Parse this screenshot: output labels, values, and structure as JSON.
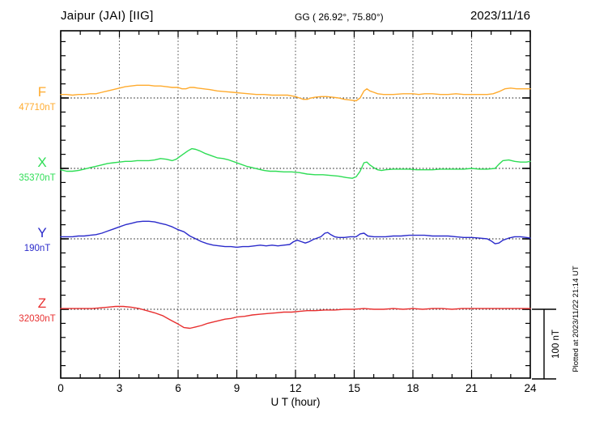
{
  "header": {
    "station_title": "Jaipur (JAI)  [IIG]",
    "coords_label": "GG ( 26.92°,  75.80°)",
    "date": "2023/11/16"
  },
  "axis": {
    "x_label": "U T (hour)",
    "x_ticks": [
      0,
      3,
      6,
      9,
      12,
      15,
      18,
      21,
      24
    ],
    "x_range": [
      0,
      24
    ],
    "minor_tick_step_hours": 1,
    "grid_hours": [
      3,
      6,
      9,
      12,
      15,
      18,
      21
    ],
    "y_minor_tick_nT": 20
  },
  "scale_bar": {
    "label": "100 nT",
    "nT": 100
  },
  "footer_note": "Plotted at 2023/11/22 21:14 UT",
  "chart_data": {
    "type": "line",
    "title": "Jaipur (JAI) [IIG] magnetogram 2023/11/16",
    "xlabel": "U T (hour)",
    "x_range": [
      0,
      24
    ],
    "grid": "dotted vertical every 3 h, dotted horizontal baseline per component",
    "legend_position": "left margin (component letter + baseline value)",
    "y_units": "nT offset from component baseline, 100 nT between baselines",
    "series": [
      {
        "name": "F",
        "baseline_label": "47710nT",
        "color": "#FFAB2E",
        "points": [
          [
            0,
            5
          ],
          [
            0.3,
            5
          ],
          [
            0.6,
            4
          ],
          [
            0.9,
            5
          ],
          [
            1.2,
            5
          ],
          [
            1.5,
            6
          ],
          [
            1.8,
            6
          ],
          [
            2.1,
            8
          ],
          [
            2.4,
            10
          ],
          [
            2.7,
            12
          ],
          [
            3.0,
            14
          ],
          [
            3.3,
            16
          ],
          [
            3.6,
            17
          ],
          [
            3.9,
            18
          ],
          [
            4.2,
            18
          ],
          [
            4.5,
            18
          ],
          [
            4.8,
            17
          ],
          [
            5.1,
            17
          ],
          [
            5.4,
            16
          ],
          [
            5.7,
            15
          ],
          [
            6.0,
            15
          ],
          [
            6.2,
            13
          ],
          [
            6.4,
            13
          ],
          [
            6.6,
            15
          ],
          [
            6.8,
            15
          ],
          [
            7.0,
            14
          ],
          [
            7.3,
            13
          ],
          [
            7.6,
            12
          ],
          [
            8.0,
            10
          ],
          [
            8.4,
            9
          ],
          [
            8.8,
            8
          ],
          [
            9.2,
            7
          ],
          [
            9.6,
            6
          ],
          [
            10.0,
            5
          ],
          [
            10.4,
            5
          ],
          [
            10.8,
            4
          ],
          [
            11.2,
            4
          ],
          [
            11.6,
            4
          ],
          [
            12.0,
            2
          ],
          [
            12.2,
            0
          ],
          [
            12.4,
            -2
          ],
          [
            12.6,
            -2
          ],
          [
            12.8,
            0
          ],
          [
            13.0,
            1
          ],
          [
            13.3,
            2
          ],
          [
            13.6,
            2
          ],
          [
            13.9,
            1
          ],
          [
            14.2,
            0
          ],
          [
            14.5,
            -2
          ],
          [
            14.8,
            -3
          ],
          [
            15.1,
            -4
          ],
          [
            15.3,
            0
          ],
          [
            15.5,
            10
          ],
          [
            15.65,
            13
          ],
          [
            15.8,
            10
          ],
          [
            16.0,
            8
          ],
          [
            16.2,
            6
          ],
          [
            16.5,
            5
          ],
          [
            17.0,
            5
          ],
          [
            17.5,
            6
          ],
          [
            18.0,
            6
          ],
          [
            18.3,
            5
          ],
          [
            18.6,
            6
          ],
          [
            19.0,
            6
          ],
          [
            19.4,
            5
          ],
          [
            19.8,
            5
          ],
          [
            20.2,
            6
          ],
          [
            20.6,
            5
          ],
          [
            21.0,
            5
          ],
          [
            21.4,
            5
          ],
          [
            21.8,
            5
          ],
          [
            22.1,
            6
          ],
          [
            22.4,
            9
          ],
          [
            22.7,
            13
          ],
          [
            23.0,
            14
          ],
          [
            23.3,
            13
          ],
          [
            23.6,
            13
          ],
          [
            24,
            13
          ]
        ]
      },
      {
        "name": "X",
        "baseline_label": "35370nT",
        "color": "#2EDD55",
        "points": [
          [
            0,
            -2
          ],
          [
            0.3,
            -4
          ],
          [
            0.6,
            -4
          ],
          [
            0.9,
            -3
          ],
          [
            1.2,
            -1
          ],
          [
            1.5,
            1
          ],
          [
            1.8,
            3
          ],
          [
            2.1,
            5
          ],
          [
            2.4,
            7
          ],
          [
            2.7,
            8
          ],
          [
            3.0,
            9
          ],
          [
            3.3,
            10
          ],
          [
            3.6,
            10
          ],
          [
            3.9,
            11
          ],
          [
            4.2,
            11
          ],
          [
            4.5,
            11
          ],
          [
            4.8,
            12
          ],
          [
            5.1,
            14
          ],
          [
            5.4,
            13
          ],
          [
            5.7,
            11
          ],
          [
            5.9,
            13
          ],
          [
            6.1,
            17
          ],
          [
            6.3,
            21
          ],
          [
            6.5,
            25
          ],
          [
            6.7,
            28
          ],
          [
            6.9,
            27
          ],
          [
            7.1,
            25
          ],
          [
            7.4,
            21
          ],
          [
            7.7,
            18
          ],
          [
            8.0,
            15
          ],
          [
            8.3,
            14
          ],
          [
            8.6,
            12
          ],
          [
            8.9,
            9
          ],
          [
            9.2,
            6
          ],
          [
            9.5,
            3
          ],
          [
            9.8,
            1
          ],
          [
            10.1,
            -1
          ],
          [
            10.4,
            -3
          ],
          [
            10.7,
            -4
          ],
          [
            11.0,
            -4
          ],
          [
            11.4,
            -5
          ],
          [
            11.8,
            -5
          ],
          [
            12.2,
            -6
          ],
          [
            12.6,
            -8
          ],
          [
            13.0,
            -9
          ],
          [
            13.4,
            -9
          ],
          [
            13.8,
            -10
          ],
          [
            14.2,
            -11
          ],
          [
            14.6,
            -13
          ],
          [
            14.9,
            -14
          ],
          [
            15.1,
            -12
          ],
          [
            15.3,
            -4
          ],
          [
            15.5,
            8
          ],
          [
            15.65,
            9
          ],
          [
            15.8,
            5
          ],
          [
            16.0,
            1
          ],
          [
            16.2,
            -2
          ],
          [
            16.4,
            -3
          ],
          [
            16.6,
            -2
          ],
          [
            17.0,
            -1
          ],
          [
            17.4,
            -1
          ],
          [
            17.8,
            -1
          ],
          [
            18.2,
            -2
          ],
          [
            18.6,
            -2
          ],
          [
            19.0,
            -2
          ],
          [
            19.4,
            -1
          ],
          [
            19.8,
            -1
          ],
          [
            20.2,
            -1
          ],
          [
            20.6,
            -1
          ],
          [
            21.0,
            0
          ],
          [
            21.4,
            -1
          ],
          [
            21.8,
            -1
          ],
          [
            22.2,
            0
          ],
          [
            22.4,
            6
          ],
          [
            22.6,
            11
          ],
          [
            22.9,
            12
          ],
          [
            23.2,
            10
          ],
          [
            23.5,
            9
          ],
          [
            23.8,
            9
          ],
          [
            24,
            10
          ]
        ]
      },
      {
        "name": "Y",
        "baseline_label": "190nT",
        "color": "#2B2BCB",
        "points": [
          [
            0,
            3
          ],
          [
            0.3,
            3
          ],
          [
            0.6,
            3
          ],
          [
            0.9,
            4
          ],
          [
            1.2,
            4
          ],
          [
            1.5,
            5
          ],
          [
            1.8,
            6
          ],
          [
            2.1,
            8
          ],
          [
            2.4,
            11
          ],
          [
            2.7,
            14
          ],
          [
            3.0,
            17
          ],
          [
            3.3,
            20
          ],
          [
            3.6,
            22
          ],
          [
            3.9,
            24
          ],
          [
            4.2,
            25
          ],
          [
            4.5,
            25
          ],
          [
            4.8,
            24
          ],
          [
            5.1,
            22
          ],
          [
            5.4,
            20
          ],
          [
            5.7,
            17
          ],
          [
            6.0,
            13
          ],
          [
            6.3,
            10
          ],
          [
            6.6,
            4
          ],
          [
            6.9,
            0
          ],
          [
            7.2,
            -4
          ],
          [
            7.5,
            -7
          ],
          [
            7.8,
            -9
          ],
          [
            8.1,
            -10
          ],
          [
            8.4,
            -11
          ],
          [
            8.7,
            -11
          ],
          [
            9.0,
            -12
          ],
          [
            9.3,
            -11
          ],
          [
            9.6,
            -11
          ],
          [
            9.9,
            -10
          ],
          [
            10.2,
            -9
          ],
          [
            10.5,
            -10
          ],
          [
            10.8,
            -9
          ],
          [
            11.1,
            -10
          ],
          [
            11.4,
            -9
          ],
          [
            11.7,
            -8
          ],
          [
            11.9,
            -4
          ],
          [
            12.1,
            -2
          ],
          [
            12.3,
            -4
          ],
          [
            12.5,
            -6
          ],
          [
            12.7,
            -4
          ],
          [
            12.9,
            -1
          ],
          [
            13.1,
            1
          ],
          [
            13.3,
            3
          ],
          [
            13.5,
            8
          ],
          [
            13.65,
            9
          ],
          [
            13.8,
            6
          ],
          [
            14.0,
            3
          ],
          [
            14.2,
            2
          ],
          [
            14.5,
            2
          ],
          [
            14.8,
            3
          ],
          [
            15.1,
            3
          ],
          [
            15.3,
            7
          ],
          [
            15.5,
            8
          ],
          [
            15.7,
            4
          ],
          [
            16.0,
            3
          ],
          [
            16.3,
            3
          ],
          [
            16.6,
            3
          ],
          [
            17.0,
            4
          ],
          [
            17.4,
            4
          ],
          [
            17.8,
            5
          ],
          [
            18.2,
            5
          ],
          [
            18.6,
            5
          ],
          [
            19.0,
            4
          ],
          [
            19.4,
            4
          ],
          [
            19.8,
            4
          ],
          [
            20.2,
            3
          ],
          [
            20.6,
            2
          ],
          [
            21.0,
            2
          ],
          [
            21.4,
            1
          ],
          [
            21.8,
            0
          ],
          [
            22.0,
            -3
          ],
          [
            22.2,
            -7
          ],
          [
            22.4,
            -6
          ],
          [
            22.6,
            -2
          ],
          [
            22.9,
            1
          ],
          [
            23.2,
            3
          ],
          [
            23.5,
            3
          ],
          [
            23.8,
            2
          ],
          [
            24,
            1
          ]
        ]
      },
      {
        "name": "Z",
        "baseline_label": "32030nT",
        "color": "#E83030",
        "points": [
          [
            0,
            1
          ],
          [
            0.4,
            1
          ],
          [
            0.8,
            1
          ],
          [
            1.2,
            1
          ],
          [
            1.6,
            1
          ],
          [
            2.0,
            2
          ],
          [
            2.4,
            3
          ],
          [
            2.8,
            4
          ],
          [
            3.2,
            4
          ],
          [
            3.6,
            3
          ],
          [
            4.0,
            1
          ],
          [
            4.4,
            -2
          ],
          [
            4.8,
            -5
          ],
          [
            5.2,
            -9
          ],
          [
            5.6,
            -15
          ],
          [
            6.0,
            -21
          ],
          [
            6.3,
            -26
          ],
          [
            6.6,
            -27
          ],
          [
            6.9,
            -25
          ],
          [
            7.2,
            -23
          ],
          [
            7.5,
            -20
          ],
          [
            7.8,
            -18
          ],
          [
            8.1,
            -16
          ],
          [
            8.4,
            -14
          ],
          [
            8.7,
            -13
          ],
          [
            9.0,
            -11
          ],
          [
            9.4,
            -10
          ],
          [
            9.8,
            -8
          ],
          [
            10.2,
            -7
          ],
          [
            10.6,
            -6
          ],
          [
            11.0,
            -5
          ],
          [
            11.4,
            -4
          ],
          [
            11.8,
            -4
          ],
          [
            12.2,
            -3
          ],
          [
            12.6,
            -2
          ],
          [
            13.0,
            -2
          ],
          [
            13.5,
            -1
          ],
          [
            14.0,
            -1
          ],
          [
            14.5,
            0
          ],
          [
            15.0,
            0
          ],
          [
            15.5,
            1
          ],
          [
            16.0,
            0
          ],
          [
            16.5,
            0
          ],
          [
            17.0,
            1
          ],
          [
            17.5,
            0
          ],
          [
            18.0,
            1
          ],
          [
            18.5,
            0
          ],
          [
            19.0,
            1
          ],
          [
            19.5,
            1
          ],
          [
            20.0,
            0
          ],
          [
            20.5,
            1
          ],
          [
            21.0,
            1
          ],
          [
            21.5,
            1
          ],
          [
            22.0,
            1
          ],
          [
            22.5,
            1
          ],
          [
            23.0,
            1
          ],
          [
            23.5,
            1
          ],
          [
            24,
            1
          ]
        ]
      }
    ]
  }
}
